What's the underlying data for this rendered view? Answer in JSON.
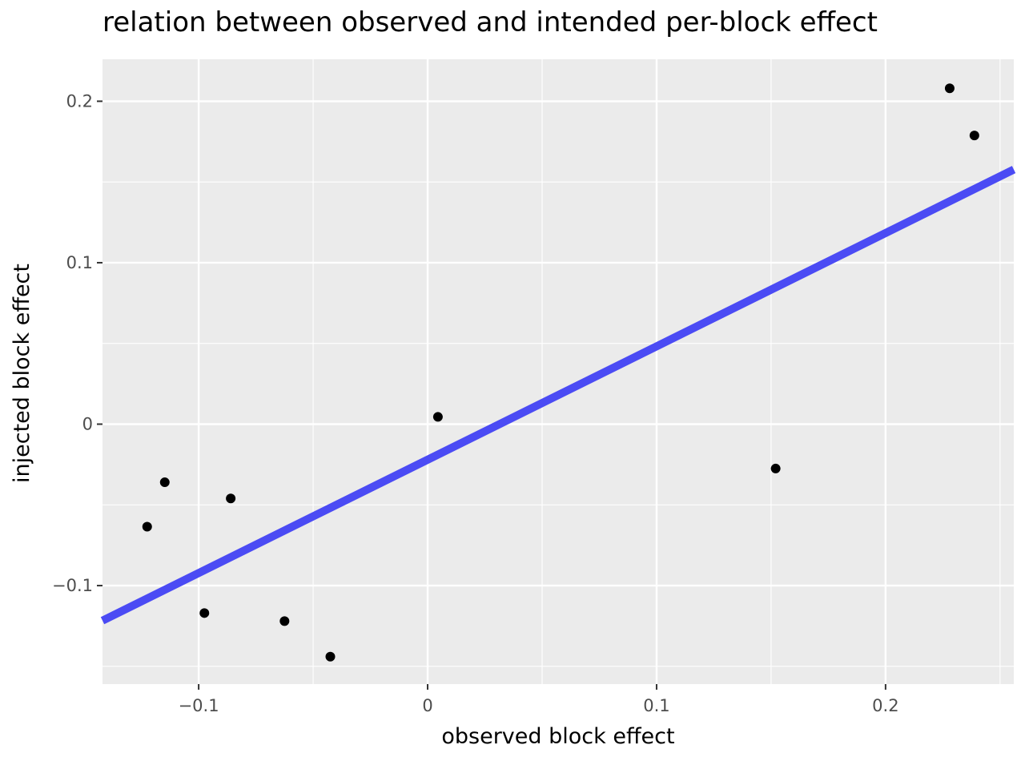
{
  "chart_data": {
    "type": "scatter",
    "title": "relation between observed and intended per-block effect",
    "xlabel": "observed block effect",
    "ylabel": "injected block effect",
    "xlim": [
      -0.142,
      0.256
    ],
    "ylim": [
      -0.161,
      0.226
    ],
    "x_ticks": [
      {
        "value": -0.1,
        "label": "−0.1"
      },
      {
        "value": 0,
        "label": "0"
      },
      {
        "value": 0.1,
        "label": "0.1"
      },
      {
        "value": 0.2,
        "label": "0.2"
      }
    ],
    "y_ticks": [
      {
        "value": -0.1,
        "label": "−0.1"
      },
      {
        "value": 0,
        "label": "0"
      },
      {
        "value": 0.1,
        "label": "0.1"
      },
      {
        "value": 0.2,
        "label": "0.2"
      }
    ],
    "x_minor": [
      -0.05,
      0.05,
      0.15,
      0.25
    ],
    "y_minor": [
      -0.15,
      -0.05,
      0.05,
      0.15
    ],
    "grid": true,
    "points": [
      {
        "x": -0.1225,
        "y": -0.0635
      },
      {
        "x": -0.1148,
        "y": -0.036
      },
      {
        "x": -0.0975,
        "y": -0.117
      },
      {
        "x": -0.086,
        "y": -0.046
      },
      {
        "x": -0.0625,
        "y": -0.122
      },
      {
        "x": -0.0425,
        "y": -0.144
      },
      {
        "x": 0.0045,
        "y": 0.0045
      },
      {
        "x": 0.152,
        "y": -0.0275
      },
      {
        "x": 0.228,
        "y": 0.208
      },
      {
        "x": 0.2388,
        "y": 0.1788
      }
    ],
    "fit_line": {
      "x": [
        -0.142,
        0.256
      ],
      "y": [
        -0.1217,
        0.1577
      ]
    },
    "colors": {
      "panel": "#ebebeb",
      "grid": "#ffffff",
      "points": "#000000",
      "fit_line": "#4b4bf4"
    }
  }
}
